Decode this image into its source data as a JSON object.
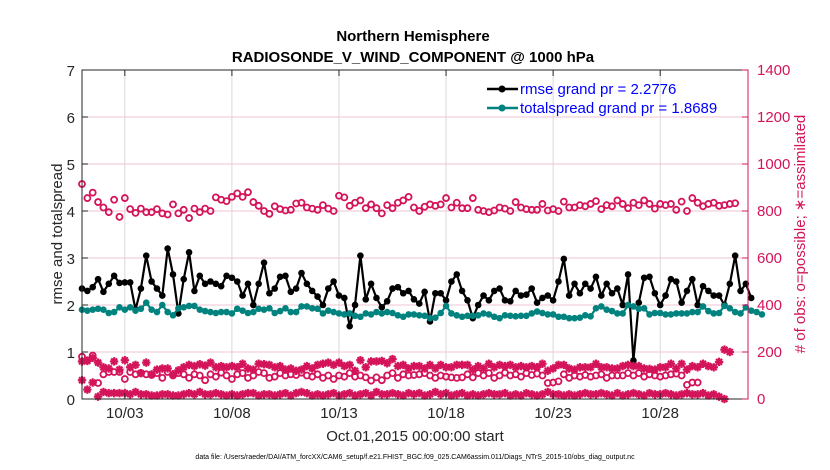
{
  "chart_data": {
    "type": "line",
    "title": "Northern Hemisphere",
    "subtitle": "RADIOSONDE_V_WIND_COMPONENT @ 1000 hPa",
    "xlabel": "Oct.01,2015 00:00:00 start",
    "ylabel": "rmse and totalspread",
    "ylabel_right": "# of obs: o=possible; ∗=assimilated",
    "footnote": "data file: /Users/raeder/DAI/ATM_forcXX/CAM6_setup/f.e21.FHIST_BGC.f09_025.CAM6assim.011/Diags_NTrS_2015-10/obs_diag_output.nc",
    "x_tick_days": [
      3,
      8,
      13,
      18,
      23,
      28
    ],
    "x_tick_labels": [
      "10/03",
      "10/08",
      "10/13",
      "10/18",
      "10/23",
      "10/28"
    ],
    "xlim_days": [
      1.0,
      32.1
    ],
    "ylim": [
      0,
      7
    ],
    "yticks": [
      0,
      1,
      2,
      3,
      4,
      5,
      6,
      7
    ],
    "ylim_right": [
      0,
      1400
    ],
    "yticks_right": [
      0,
      200,
      400,
      600,
      800,
      1000,
      1200,
      1400
    ],
    "legend_placement": "top-right",
    "colors": {
      "rmse": "#000000",
      "spread": "#00837f",
      "obs": "#d4145a",
      "grid": "#d9d9d9",
      "rgrid": "#f2c6d6"
    },
    "x_start_day": 1.0,
    "x_step_days": 0.25,
    "series": [
      {
        "name": "rmse grand pr = 2.2776",
        "axis": "left",
        "marker": "dot",
        "values": [
          2.35,
          2.3,
          2.38,
          2.55,
          2.28,
          2.45,
          2.62,
          2.47,
          2.48,
          2.48,
          1.9,
          2.35,
          3.05,
          2.5,
          2.35,
          2.2,
          3.2,
          2.65,
          1.82,
          2.55,
          3.12,
          2.3,
          2.62,
          2.45,
          2.5,
          2.45,
          2.4,
          2.62,
          2.58,
          2.5,
          2.2,
          2.45,
          2.0,
          2.45,
          2.9,
          2.25,
          2.35,
          2.6,
          2.62,
          2.28,
          2.35,
          2.68,
          2.45,
          2.3,
          2.18,
          2.0,
          2.35,
          2.5,
          2.2,
          2.15,
          1.55,
          2.0,
          3.05,
          2.12,
          2.45,
          2.15,
          1.95,
          2.08,
          2.35,
          2.38,
          2.25,
          2.3,
          2.12,
          2.03,
          2.28,
          1.65,
          2.25,
          2.25,
          2.1,
          2.5,
          2.65,
          2.3,
          2.1,
          1.72,
          2.0,
          2.2,
          2.1,
          2.3,
          2.35,
          2.1,
          2.08,
          2.3,
          2.2,
          2.22,
          2.35,
          2.05,
          2.15,
          2.2,
          2.1,
          2.5,
          2.98,
          2.2,
          2.45,
          2.25,
          2.45,
          2.35,
          2.6,
          2.2,
          2.45,
          2.25,
          2.35,
          2.0,
          2.65,
          0.82,
          2.05,
          2.58,
          2.6,
          2.25,
          2.0,
          2.2,
          2.55,
          2.5,
          2.05,
          2.3,
          2.55,
          2.0,
          2.4,
          2.3,
          2.2,
          2.2,
          2.0,
          2.45,
          3.05,
          2.3,
          2.45,
          2.15
        ]
      },
      {
        "name": "totalspread grand pr = 1.8689",
        "axis": "left",
        "marker": "dot",
        "values": [
          1.9,
          1.88,
          1.9,
          1.92,
          1.9,
          1.83,
          1.85,
          1.95,
          1.9,
          1.95,
          1.88,
          1.92,
          2.05,
          1.9,
          1.85,
          2.0,
          1.85,
          1.78,
          1.93,
          1.95,
          1.98,
          1.98,
          1.9,
          1.87,
          1.85,
          1.83,
          1.85,
          1.85,
          1.82,
          1.92,
          1.88,
          1.83,
          1.85,
          1.92,
          1.9,
          1.93,
          1.83,
          1.87,
          1.93,
          1.85,
          1.85,
          1.97,
          1.97,
          1.93,
          1.92,
          1.82,
          1.88,
          1.85,
          1.82,
          1.8,
          1.82,
          1.77,
          1.75,
          1.82,
          1.8,
          1.85,
          1.82,
          1.85,
          1.83,
          1.78,
          1.75,
          1.8,
          1.8,
          1.78,
          1.77,
          1.72,
          1.73,
          1.83,
          1.98,
          1.82,
          1.78,
          1.75,
          1.77,
          1.77,
          1.78,
          1.82,
          1.8,
          1.75,
          1.72,
          1.78,
          1.77,
          1.76,
          1.77,
          1.77,
          1.82,
          1.86,
          1.83,
          1.8,
          1.8,
          1.75,
          1.75,
          1.72,
          1.72,
          1.73,
          1.78,
          1.76,
          1.93,
          1.97,
          1.9,
          1.87,
          1.82,
          1.82,
          2.0,
          1.97,
          1.92,
          1.93,
          1.8,
          1.83,
          1.83,
          1.8,
          1.8,
          1.82,
          1.82,
          1.82,
          1.85,
          1.85,
          1.97,
          1.87,
          1.82,
          1.83,
          1.98,
          1.93,
          1.85,
          1.82,
          1.95,
          1.88,
          1.85,
          1.8
        ]
      },
      {
        "name": "possible (upper)",
        "axis": "right",
        "marker": "circle",
        "values": [
          915,
          855,
          878,
          838,
          815,
          795,
          848,
          775,
          855,
          808,
          792,
          810,
          795,
          795,
          808,
          790,
          785,
          828,
          790,
          805,
          770,
          810,
          795,
          810,
          800,
          858,
          848,
          842,
          860,
          875,
          860,
          880,
          838,
          822,
          800,
          788,
          820,
          808,
          802,
          805,
          832,
          835,
          815,
          810,
          805,
          825,
          810,
          800,
          865,
          858,
          822,
          835,
          845,
          812,
          828,
          812,
          790,
          825,
          812,
          835,
          845,
          860,
          815,
          800,
          818,
          828,
          822,
          828,
          855,
          815,
          835,
          812,
          812,
          855,
          805,
          800,
          795,
          802,
          815,
          810,
          800,
          838,
          815,
          808,
          805,
          805,
          830,
          802,
          808,
          800,
          840,
          815,
          815,
          825,
          820,
          830,
          842,
          808,
          825,
          820,
          845,
          830,
          812,
          835,
          825,
          845,
          830,
          810,
          830,
          825,
          830,
          805,
          840,
          800,
          855,
          835,
          820,
          830,
          835,
          822,
          825,
          830,
          833
        ]
      },
      {
        "name": "possible (lower)",
        "axis": "right",
        "marker": "circle",
        "values": [
          180,
          165,
          185,
          68,
          105,
          115,
          115,
          115,
          85,
          115,
          105,
          110,
          105,
          102,
          110,
          90,
          115,
          100,
          110,
          105,
          90,
          105,
          100,
          80,
          105,
          95,
          112,
          100,
          85,
          105,
          110,
          90,
          100,
          115,
          110,
          90,
          95,
          110,
          100,
          105,
          102,
          112,
          100,
          95,
          105,
          90,
          100,
          85,
          100,
          95,
          110,
          95,
          100,
          92,
          78,
          92,
          80,
          100,
          110,
          90,
          105,
          100,
          102,
          105,
          110,
          100,
          90,
          100,
          95,
          92,
          90,
          92,
          105,
          92,
          110,
          100,
          110,
          90,
          100,
          112,
          100,
          105,
          95,
          110,
          102,
          108,
          100,
          68,
          70,
          75,
          105,
          90,
          100,
          95,
          102,
          95,
          100,
          105,
          90,
          100,
          100,
          100,
          110,
          100,
          110,
          95,
          105,
          100,
          95,
          100,
          105,
          108,
          100,
          60,
          70,
          70
        ]
      },
      {
        "name": "assimilated (upper)",
        "axis": "right",
        "marker": "star",
        "values": [
          160,
          162,
          175,
          155,
          135,
          130,
          160,
          125,
          165,
          135,
          145,
          110,
          155,
          105,
          125,
          130,
          130,
          105,
          122,
          135,
          145,
          140,
          148,
          142,
          155,
          135,
          140,
          135,
          140,
          135,
          150,
          130,
          125,
          150,
          148,
          145,
          135,
          140,
          125,
          130,
          120,
          125,
          140,
          130,
          145,
          150,
          155,
          145,
          155,
          140,
          145,
          120,
          165,
          135,
          160,
          160,
          162,
          152,
          170,
          140,
          145,
          130,
          140,
          140,
          130,
          145,
          130,
          145,
          135,
          135,
          145,
          145,
          145,
          125,
          140,
          130,
          150,
          135,
          145,
          140,
          145,
          135,
          140,
          135,
          140,
          135,
          150,
          120,
          130,
          145,
          145,
          130,
          125,
          135,
          135,
          135,
          150,
          135,
          135,
          130,
          130,
          140,
          145,
          140,
          140,
          130,
          128,
          125,
          135,
          135,
          150,
          130,
          150,
          125,
          140,
          135,
          150,
          140,
          135,
          158,
          210,
          200
        ]
      },
      {
        "name": "assimilated (lower)",
        "axis": "right",
        "marker": "star",
        "values": [
          80,
          40,
          70,
          10,
          30,
          25,
          25,
          25,
          25,
          20,
          30,
          20,
          20,
          15,
          15,
          20,
          20,
          15,
          15,
          20,
          25,
          20,
          30,
          20,
          20,
          25,
          20,
          15,
          20,
          15,
          20,
          25,
          25,
          15,
          20,
          20,
          15,
          20,
          25,
          15,
          25,
          30,
          25,
          15,
          20,
          15,
          20,
          25,
          15,
          20,
          25,
          15,
          20,
          25,
          15,
          30,
          20,
          20,
          25,
          20,
          15,
          25,
          20,
          25,
          15,
          20,
          30,
          20,
          25,
          15,
          20,
          25,
          15,
          20,
          15,
          20,
          25,
          20,
          20,
          25,
          15,
          20,
          15,
          25,
          20,
          15,
          20,
          30,
          20,
          20,
          15,
          20,
          15,
          20,
          25,
          20,
          20,
          25,
          20,
          15,
          25,
          15,
          20,
          25,
          20,
          15,
          25,
          20,
          20,
          25,
          20,
          15,
          20,
          25,
          20,
          20,
          25,
          15,
          20,
          10,
          0
        ]
      }
    ]
  }
}
